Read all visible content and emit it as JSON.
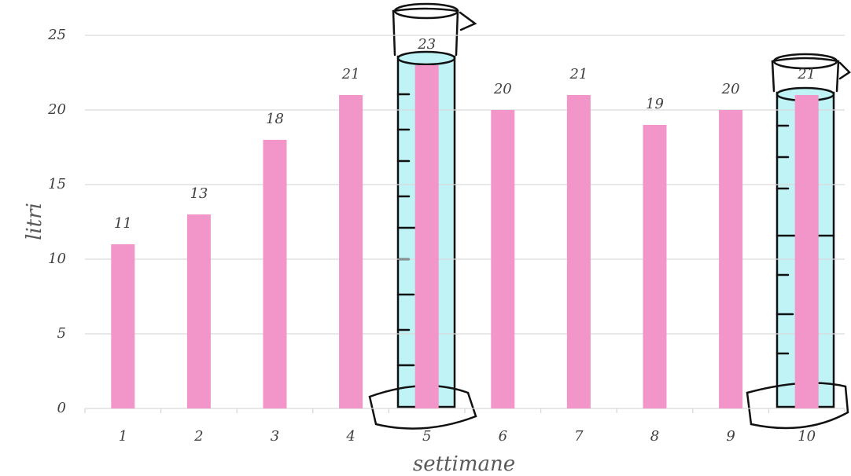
{
  "chart_data": {
    "type": "bar",
    "x_label": "settimane",
    "y_label": "litri",
    "categories": [
      "1",
      "2",
      "3",
      "4",
      "5",
      "6",
      "7",
      "8",
      "9",
      "10"
    ],
    "values": [
      11,
      13,
      18,
      21,
      23,
      20,
      21,
      19,
      20,
      21
    ],
    "color": "#f295c9",
    "ylim": [
      0,
      25
    ],
    "yticks": [
      0,
      5,
      10,
      15,
      20,
      25
    ],
    "grid": true,
    "data_labels": true
  }
}
